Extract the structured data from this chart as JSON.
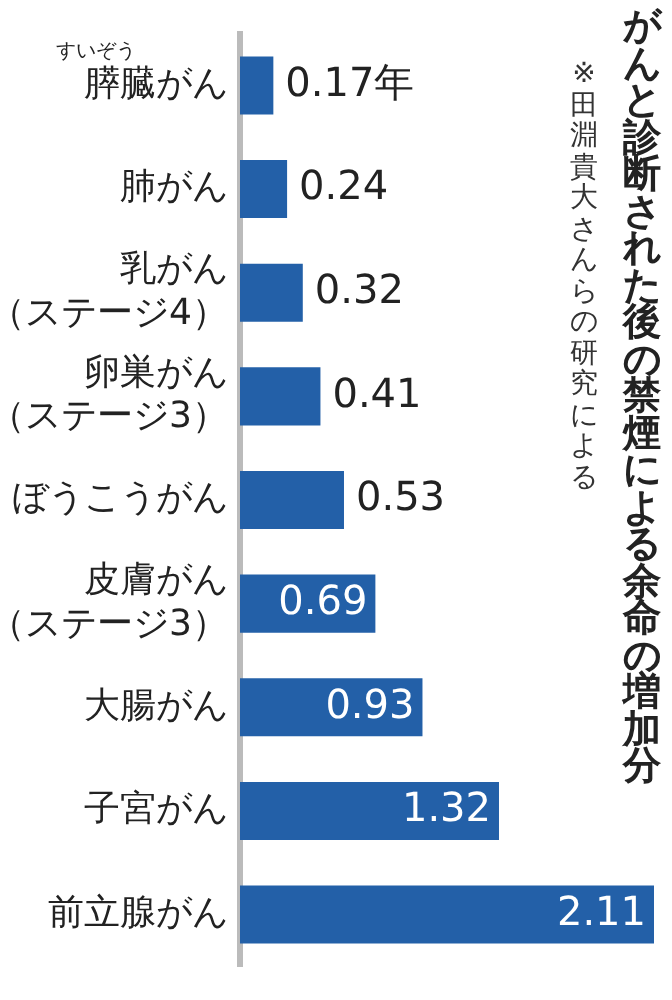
{
  "chart_data": {
    "type": "bar",
    "orientation": "horizontal",
    "title": "がんと診断された後の禁煙による余命の増加分",
    "annotations": [
      "※田淵貴大さんらの研究による",
      "すいぞう"
    ],
    "categories": [
      "膵臓がん",
      "肺がん",
      "乳がん（ステージ4）",
      "卵巣がん（ステージ3）",
      "ぼうこうがん",
      "皮膚がん（ステージ3）",
      "大腸がん",
      "子宮がん",
      "前立腺がん"
    ],
    "values": [
      0.17,
      0.24,
      0.32,
      0.41,
      0.53,
      0.69,
      0.93,
      1.32,
      2.11
    ],
    "value_labels": [
      "0.17年",
      "0.24",
      "0.32",
      "0.41",
      "0.53",
      "0.69",
      "0.93",
      "1.32",
      "2.11"
    ],
    "color": "#2360a8",
    "tick_labels": "y"
  }
}
